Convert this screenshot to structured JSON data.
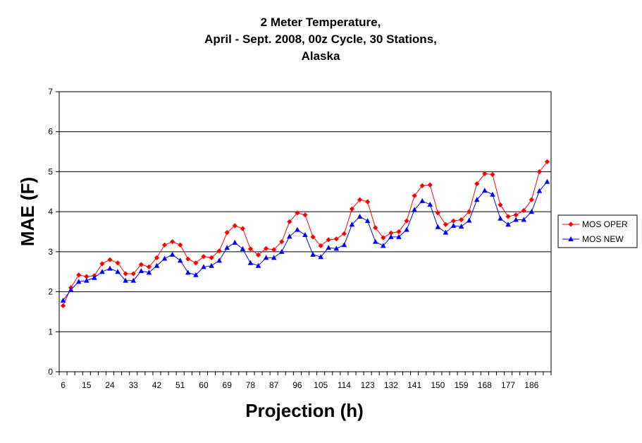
{
  "chart_data": {
    "type": "line",
    "title_lines": [
      "2 Meter Temperature,",
      "April - Sept. 2008, 00z Cycle, 30 Stations,",
      "Alaska"
    ],
    "xlabel": "Projection (h)",
    "ylabel": "MAE (F)",
    "ylim": [
      0,
      7
    ],
    "yticks": [
      "0",
      "1",
      "2",
      "3",
      "4",
      "5",
      "6",
      "7"
    ],
    "x": [
      6,
      9,
      12,
      15,
      18,
      21,
      24,
      27,
      30,
      33,
      36,
      39,
      42,
      45,
      48,
      51,
      54,
      57,
      60,
      63,
      66,
      69,
      72,
      75,
      78,
      81,
      84,
      87,
      90,
      93,
      96,
      99,
      102,
      105,
      108,
      111,
      114,
      117,
      120,
      123,
      126,
      129,
      132,
      135,
      138,
      141,
      144,
      147,
      150,
      153,
      156,
      159,
      162,
      165,
      168,
      171,
      174,
      177,
      180,
      183,
      186,
      189,
      192
    ],
    "xtick_labels": [
      "6",
      "15",
      "24",
      "33",
      "42",
      "51",
      "60",
      "69",
      "78",
      "87",
      "96",
      "105",
      "114",
      "123",
      "132",
      "141",
      "150",
      "159",
      "168",
      "177",
      "186"
    ],
    "grid": "horizontal",
    "legend_position": "right",
    "series": [
      {
        "name": "MOS OPER",
        "color": "#ff0000",
        "marker": "diamond",
        "values": [
          1.65,
          2.1,
          2.42,
          2.38,
          2.4,
          2.7,
          2.8,
          2.72,
          2.45,
          2.45,
          2.68,
          2.62,
          2.85,
          3.17,
          3.25,
          3.17,
          2.82,
          2.72,
          2.88,
          2.85,
          3.02,
          3.48,
          3.65,
          3.58,
          3.07,
          2.92,
          3.08,
          3.05,
          3.25,
          3.75,
          3.97,
          3.92,
          3.37,
          3.15,
          3.3,
          3.32,
          3.45,
          4.07,
          4.3,
          4.25,
          3.6,
          3.35,
          3.47,
          3.5,
          3.77,
          4.4,
          4.65,
          4.67,
          3.97,
          3.68,
          3.77,
          3.8,
          4.0,
          4.7,
          4.95,
          4.93,
          4.17,
          3.88,
          3.92,
          4.03,
          4.3,
          5.0,
          5.25
        ]
      },
      {
        "name": "MOS NEW",
        "color": "#0000ff",
        "marker": "triangle",
        "values": [
          1.78,
          2.05,
          2.25,
          2.28,
          2.35,
          2.5,
          2.58,
          2.5,
          2.28,
          2.28,
          2.52,
          2.48,
          2.65,
          2.83,
          2.93,
          2.78,
          2.48,
          2.42,
          2.62,
          2.65,
          2.78,
          3.1,
          3.23,
          3.07,
          2.72,
          2.65,
          2.85,
          2.85,
          3.0,
          3.38,
          3.55,
          3.42,
          2.93,
          2.87,
          3.1,
          3.08,
          3.17,
          3.68,
          3.88,
          3.77,
          3.25,
          3.15,
          3.37,
          3.37,
          3.55,
          4.05,
          4.27,
          4.18,
          3.62,
          3.48,
          3.65,
          3.63,
          3.78,
          4.3,
          4.53,
          4.43,
          3.83,
          3.68,
          3.8,
          3.8,
          4.0,
          4.52,
          4.75
        ]
      }
    ]
  }
}
